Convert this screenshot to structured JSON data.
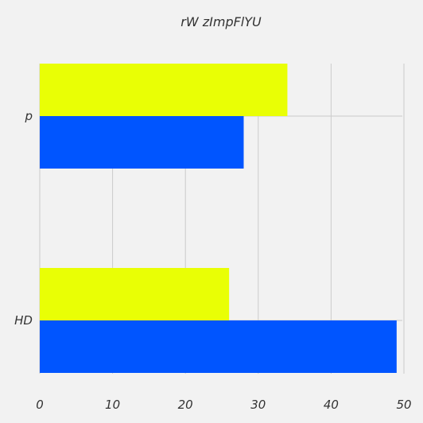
{
  "chart_data": {
    "type": "bar",
    "orientation": "horizontal",
    "title": "rW zImpFlYU",
    "xlabel": "",
    "ylabel": "",
    "categories": [
      "p",
      "HD"
    ],
    "series": [
      {
        "color": "#e9ff05",
        "values": [
          34,
          26
        ]
      },
      {
        "color": "#0055ff",
        "values": [
          28,
          49
        ]
      }
    ],
    "xlim": [
      0,
      50
    ],
    "xticks": [
      "0",
      "10",
      "20",
      "30",
      "40",
      "50"
    ],
    "grid": true,
    "legend": "none"
  }
}
